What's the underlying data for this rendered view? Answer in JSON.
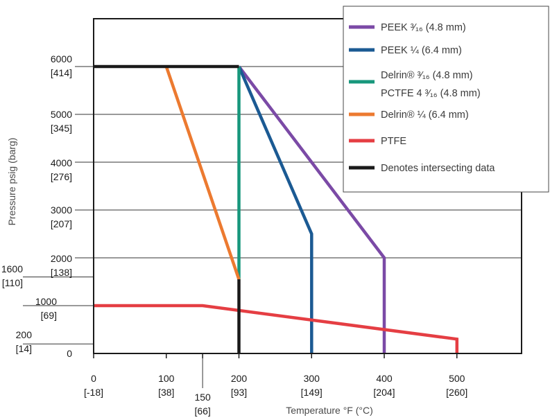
{
  "chart_data": {
    "type": "line",
    "xlabel": "Temperature °F (°C)",
    "ylabel": "Pressure psig (barg)",
    "xlim": [
      0,
      585
    ],
    "ylim": [
      0,
      7200
    ],
    "grid": true,
    "legend_position": "top-right",
    "x_ticks": [
      {
        "value": 0,
        "f": "0",
        "c": "[-18]"
      },
      {
        "value": 100,
        "f": "100",
        "c": "[38]"
      },
      {
        "value": 150,
        "f": "150",
        "c": "[66]"
      },
      {
        "value": 200,
        "f": "200",
        "c": "[93]"
      },
      {
        "value": 300,
        "f": "300",
        "c": "[149]"
      },
      {
        "value": 400,
        "f": "400",
        "c": "[204]"
      },
      {
        "value": 500,
        "f": "500",
        "c": "[260]"
      }
    ],
    "y_ticks": [
      {
        "value": 0,
        "psig": "0",
        "barg": ""
      },
      {
        "value": 200,
        "psig": "200",
        "barg": "[14]"
      },
      {
        "value": 1000,
        "psig": "1000",
        "barg": "[69]"
      },
      {
        "value": 1600,
        "psig": "1600",
        "barg": "[110]"
      },
      {
        "value": 2000,
        "psig": "2000",
        "barg": "[138]"
      },
      {
        "value": 3000,
        "psig": "3000",
        "barg": "[207]"
      },
      {
        "value": 4000,
        "psig": "4000",
        "barg": "[276]"
      },
      {
        "value": 5000,
        "psig": "5000",
        "barg": "[345]"
      },
      {
        "value": 6000,
        "psig": "6000",
        "barg": "[414]"
      }
    ],
    "gridlines_y": [
      2000,
      3000,
      4000,
      5000,
      6000
    ],
    "gridlines_y_short": [
      200,
      1000,
      1600
    ],
    "series": [
      {
        "name": "PEEK ³⁄₁₆ (4.8 mm)",
        "color": "#7b4aa6",
        "points": [
          [
            200,
            6000
          ],
          [
            400,
            2000
          ],
          [
            400,
            0
          ]
        ]
      },
      {
        "name": "PEEK ¼ (6.4 mm)",
        "color": "#1b5a93",
        "points": [
          [
            200,
            6000
          ],
          [
            300,
            2500
          ],
          [
            300,
            0
          ]
        ]
      },
      {
        "name": "Delrin® ³⁄₁₆ (4.8 mm)",
        "name2": "PCTFE 4 ³⁄₁₆ (4.8 mm)",
        "color": "#17977c",
        "points": [
          [
            200,
            6000
          ],
          [
            200,
            1550
          ]
        ]
      },
      {
        "name": "Delrin® ¼ (6.4 mm)",
        "color": "#ec7a30",
        "points": [
          [
            100,
            6000
          ],
          [
            200,
            1550
          ]
        ]
      },
      {
        "name": "PTFE",
        "color": "#e53e43",
        "points": [
          [
            0,
            1000
          ],
          [
            150,
            1000
          ],
          [
            500,
            300
          ],
          [
            500,
            0
          ]
        ]
      },
      {
        "name": "Denotes intersecting data",
        "color": "#1a1a1a",
        "points": []
      }
    ],
    "intersecting_segments": [
      [
        [
          0,
          6000
        ],
        [
          200,
          6000
        ]
      ],
      [
        [
          200,
          1550
        ],
        [
          200,
          0
        ]
      ]
    ]
  }
}
